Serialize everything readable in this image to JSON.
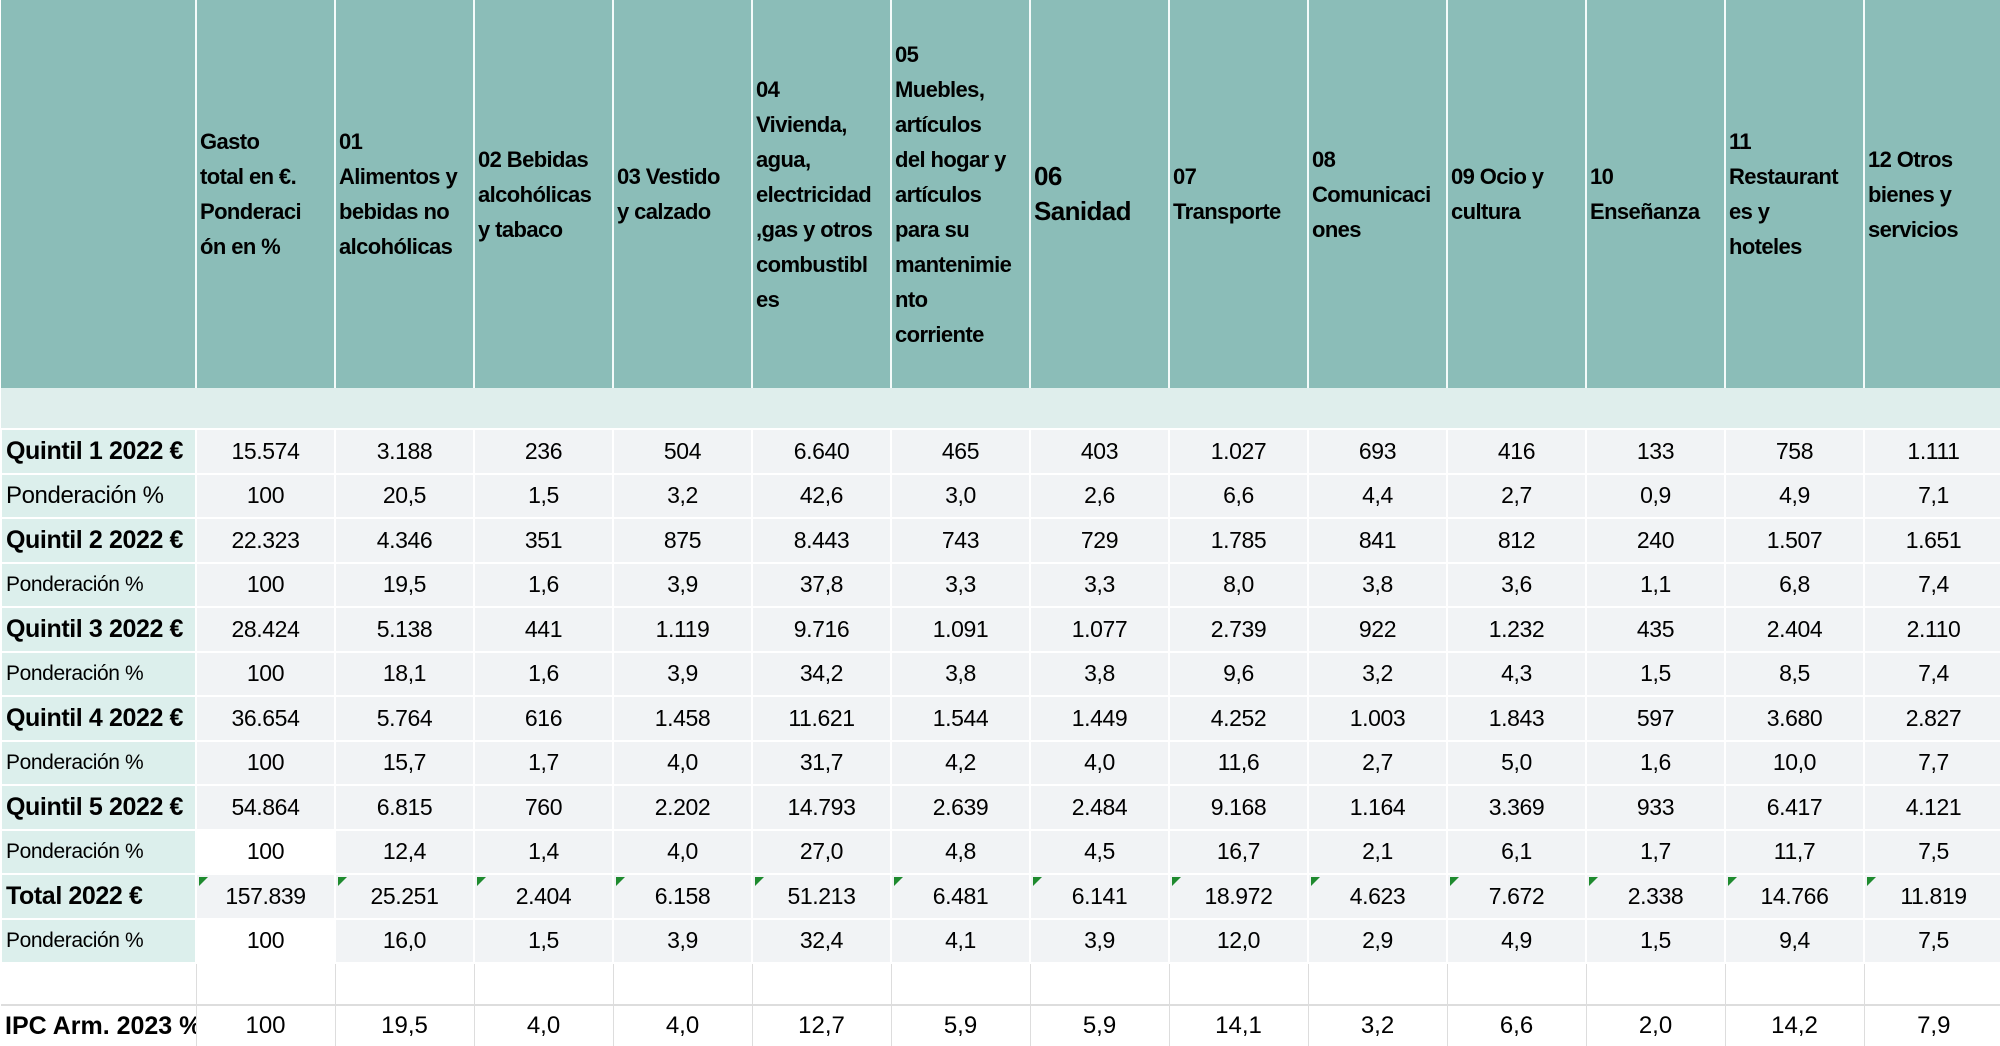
{
  "colors": {
    "header_bg": "#8bbdb8",
    "label_bg": "#dcefec",
    "cell_bg": "#f1f3f5",
    "flag": "#1e8a2e"
  },
  "headers": [
    "",
    "Gasto\ntotal en €.\nPonderaci\nón en %",
    "01\nAlimentos y\nbebidas no\nalcohólicas",
    "02 Bebidas\nalcohólicas\ny tabaco",
    "03 Vestido\ny calzado",
    "04\nVivienda,\nagua,\nelectricidad\n,gas y otros\ncombustibl\nes",
    "05\nMuebles,\nartículos\ndel hogar y\nartículos\npara su\nmantenimie\nnto\ncorriente",
    "06\nSanidad",
    "07\nTransporte",
    "08\nComunicaci\nones",
    "09 Ocio y\ncultura",
    "10\nEnseñanza",
    "11\nRestaurant\nes y\nhoteles",
    "12 Otros\nbienes y\nservicios"
  ],
  "rows": [
    {
      "label": "Quintil 1 2022 €",
      "values": [
        "15.574",
        "3.188",
        "236",
        "504",
        "6.640",
        "465",
        "403",
        "1.027",
        "693",
        "416",
        "133",
        "758",
        "1.111"
      ]
    },
    {
      "label": "Ponderación %",
      "values": [
        "100",
        "20,5",
        "1,5",
        "3,2",
        "42,6",
        "3,0",
        "2,6",
        "6,6",
        "4,4",
        "2,7",
        "0,9",
        "4,9",
        "7,1"
      ]
    },
    {
      "label": "Quintil 2 2022 €",
      "values": [
        "22.323",
        "4.346",
        "351",
        "875",
        "8.443",
        "743",
        "729",
        "1.785",
        "841",
        "812",
        "240",
        "1.507",
        "1.651"
      ]
    },
    {
      "label": "Ponderación %",
      "values": [
        "100",
        "19,5",
        "1,6",
        "3,9",
        "37,8",
        "3,3",
        "3,3",
        "8,0",
        "3,8",
        "3,6",
        "1,1",
        "6,8",
        "7,4"
      ]
    },
    {
      "label": "Quintil 3 2022 €",
      "values": [
        "28.424",
        "5.138",
        "441",
        "1.119",
        "9.716",
        "1.091",
        "1.077",
        "2.739",
        "922",
        "1.232",
        "435",
        "2.404",
        "2.110"
      ]
    },
    {
      "label": "Ponderación %",
      "values": [
        "100",
        "18,1",
        "1,6",
        "3,9",
        "34,2",
        "3,8",
        "3,8",
        "9,6",
        "3,2",
        "4,3",
        "1,5",
        "8,5",
        "7,4"
      ]
    },
    {
      "label": "Quintil 4 2022 €",
      "values": [
        "36.654",
        "5.764",
        "616",
        "1.458",
        "11.621",
        "1.544",
        "1.449",
        "4.252",
        "1.003",
        "1.843",
        "597",
        "3.680",
        "2.827"
      ]
    },
    {
      "label": "Ponderación %",
      "values": [
        "100",
        "15,7",
        "1,7",
        "4,0",
        "31,7",
        "4,2",
        "4,0",
        "11,6",
        "2,7",
        "5,0",
        "1,6",
        "10,0",
        "7,7"
      ]
    },
    {
      "label": "Quintil 5 2022 €",
      "values": [
        "54.864",
        "6.815",
        "760",
        "2.202",
        "14.793",
        "2.639",
        "2.484",
        "9.168",
        "1.164",
        "3.369",
        "933",
        "6.417",
        "4.121"
      ]
    },
    {
      "label": "Ponderación %",
      "values": [
        "100",
        "12,4",
        "1,4",
        "4,0",
        "27,0",
        "4,8",
        "4,5",
        "16,7",
        "2,1",
        "6,1",
        "1,7",
        "11,7",
        "7,5"
      ]
    },
    {
      "label": "Total 2022 €",
      "values": [
        "157.839",
        "25.251",
        "2.404",
        "6.158",
        "51.213",
        "6.481",
        "6.141",
        "18.972",
        "4.623",
        "7.672",
        "2.338",
        "14.766",
        "11.819"
      ]
    },
    {
      "label": "Ponderación %",
      "values": [
        "100",
        "16,0",
        "1,5",
        "3,9",
        "32,4",
        "4,1",
        "3,9",
        "12,0",
        "2,9",
        "4,9",
        "1,5",
        "9,4",
        "7,5"
      ]
    }
  ],
  "ipc": {
    "label": "IPC Arm. 2023 %",
    "values": [
      "100",
      "19,5",
      "4,0",
      "4,0",
      "12,7",
      "5,9",
      "5,9",
      "14,1",
      "3,2",
      "6,6",
      "2,0",
      "14,2",
      "7,9"
    ]
  }
}
